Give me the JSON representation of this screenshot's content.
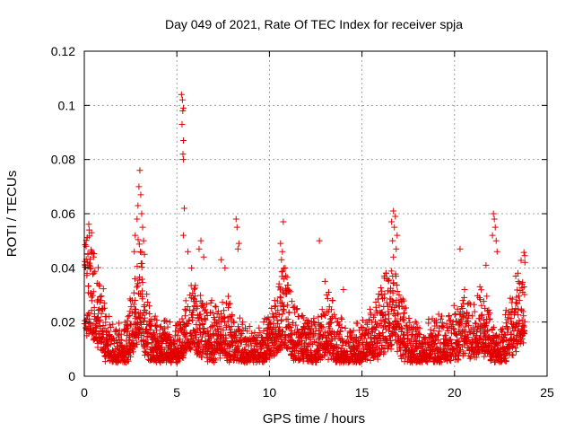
{
  "chart_data": {
    "type": "scatter",
    "title": "Day 049 of 2021, Rate Of TEC Index for receiver spja",
    "xlabel": "GPS time / hours",
    "ylabel": "ROTI / TECUs",
    "xlim": [
      0,
      25
    ],
    "ylim": [
      0,
      0.12
    ],
    "xticks": [
      0,
      5,
      10,
      15,
      20,
      25
    ],
    "xtick_labels": [
      "0",
      "5",
      "10",
      "15",
      "20",
      "25"
    ],
    "yticks": [
      0,
      0.02,
      0.04,
      0.06,
      0.08,
      0.1,
      0.12
    ],
    "ytick_labels": [
      "0",
      "0.02",
      "0.04",
      "0.06",
      "0.08",
      "0.1",
      "0.12"
    ],
    "grid": true,
    "marker": "plus",
    "color": "#e00000",
    "baseline_profile": [
      [
        0.0,
        0.03
      ],
      [
        0.3,
        0.032
      ],
      [
        0.6,
        0.024
      ],
      [
        1.0,
        0.018
      ],
      [
        1.3,
        0.011
      ],
      [
        1.8,
        0.009
      ],
      [
        2.3,
        0.011
      ],
      [
        2.7,
        0.022
      ],
      [
        3.0,
        0.03
      ],
      [
        3.3,
        0.018
      ],
      [
        3.7,
        0.012
      ],
      [
        4.3,
        0.011
      ],
      [
        4.8,
        0.01
      ],
      [
        5.3,
        0.013
      ],
      [
        5.8,
        0.02
      ],
      [
        6.3,
        0.016
      ],
      [
        7.0,
        0.014
      ],
      [
        7.6,
        0.017
      ],
      [
        8.2,
        0.011
      ],
      [
        9.0,
        0.009
      ],
      [
        9.6,
        0.009
      ],
      [
        10.2,
        0.016
      ],
      [
        10.8,
        0.024
      ],
      [
        11.3,
        0.015
      ],
      [
        11.8,
        0.012
      ],
      [
        12.5,
        0.011
      ],
      [
        13.1,
        0.016
      ],
      [
        13.6,
        0.013
      ],
      [
        14.2,
        0.01
      ],
      [
        15.0,
        0.01
      ],
      [
        15.6,
        0.013
      ],
      [
        16.2,
        0.02
      ],
      [
        16.7,
        0.024
      ],
      [
        17.2,
        0.016
      ],
      [
        17.8,
        0.011
      ],
      [
        18.4,
        0.009
      ],
      [
        19.0,
        0.012
      ],
      [
        19.5,
        0.011
      ],
      [
        20.0,
        0.014
      ],
      [
        20.5,
        0.017
      ],
      [
        21.0,
        0.015
      ],
      [
        21.5,
        0.02
      ],
      [
        21.9,
        0.013
      ],
      [
        22.3,
        0.01
      ],
      [
        22.8,
        0.012
      ],
      [
        23.3,
        0.02
      ],
      [
        23.8,
        0.028
      ]
    ],
    "outliers": [
      [
        5.25,
        0.104
      ],
      [
        5.3,
        0.102
      ],
      [
        5.35,
        0.099
      ],
      [
        5.32,
        0.098
      ],
      [
        5.28,
        0.093
      ],
      [
        5.35,
        0.087
      ],
      [
        5.33,
        0.082
      ],
      [
        5.35,
        0.08
      ],
      [
        5.4,
        0.062
      ],
      [
        5.35,
        0.052
      ],
      [
        3.0,
        0.076
      ],
      [
        2.95,
        0.07
      ],
      [
        3.05,
        0.067
      ],
      [
        2.9,
        0.063
      ],
      [
        3.1,
        0.06
      ],
      [
        2.85,
        0.058
      ],
      [
        3.15,
        0.055
      ],
      [
        2.75,
        0.052
      ],
      [
        3.2,
        0.05
      ],
      [
        3.25,
        0.045
      ],
      [
        2.7,
        0.046
      ],
      [
        0.1,
        0.048
      ],
      [
        0.2,
        0.045
      ],
      [
        0.05,
        0.041
      ],
      [
        0.15,
        0.038
      ],
      [
        0.35,
        0.04
      ],
      [
        0.5,
        0.044
      ],
      [
        6.3,
        0.05
      ],
      [
        6.2,
        0.047
      ],
      [
        6.45,
        0.044
      ],
      [
        5.6,
        0.046
      ],
      [
        5.8,
        0.04
      ],
      [
        7.4,
        0.043
      ],
      [
        7.6,
        0.04
      ],
      [
        8.2,
        0.058
      ],
      [
        8.25,
        0.055
      ],
      [
        8.35,
        0.049
      ],
      [
        8.3,
        0.047
      ],
      [
        10.75,
        0.057
      ],
      [
        10.6,
        0.049
      ],
      [
        10.7,
        0.046
      ],
      [
        10.65,
        0.043
      ],
      [
        10.85,
        0.04
      ],
      [
        12.7,
        0.05
      ],
      [
        16.7,
        0.061
      ],
      [
        16.8,
        0.059
      ],
      [
        16.6,
        0.057
      ],
      [
        16.75,
        0.055
      ],
      [
        16.9,
        0.052
      ],
      [
        16.65,
        0.05
      ],
      [
        16.85,
        0.047
      ],
      [
        16.7,
        0.044
      ],
      [
        16.3,
        0.038
      ],
      [
        16.2,
        0.037
      ],
      [
        20.3,
        0.047
      ],
      [
        22.1,
        0.06
      ],
      [
        22.15,
        0.058
      ],
      [
        22.2,
        0.055
      ],
      [
        22.05,
        0.052
      ],
      [
        22.25,
        0.05
      ],
      [
        22.3,
        0.046
      ],
      [
        21.7,
        0.041
      ],
      [
        23.8,
        0.042
      ],
      [
        23.65,
        0.034
      ],
      [
        23.75,
        0.033
      ],
      [
        13.0,
        0.035
      ],
      [
        13.2,
        0.031
      ],
      [
        13.4,
        0.028
      ],
      [
        14.0,
        0.032
      ],
      [
        1.0,
        0.025
      ],
      [
        1.2,
        0.022
      ],
      [
        9.9,
        0.017
      ],
      [
        9.95,
        0.019
      ],
      [
        18.6,
        0.021
      ]
    ]
  }
}
